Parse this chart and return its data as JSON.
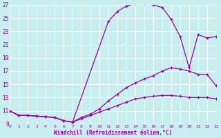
{
  "xlabel": "Windchill (Refroidissement éolien,°C)",
  "bg_color": "#c8eef0",
  "grid_color": "#ffffff",
  "line_color": "#990099",
  "xlim": [
    0,
    23
  ],
  "ylim": [
    9,
    27
  ],
  "xticks": [
    0,
    1,
    2,
    3,
    4,
    5,
    6,
    7,
    8,
    9,
    10,
    11,
    12,
    13,
    14,
    15,
    16,
    17,
    18,
    19,
    20,
    21,
    22,
    23
  ],
  "yticks": [
    9,
    11,
    13,
    15,
    17,
    19,
    21,
    23,
    25,
    27
  ],
  "line1_x": [
    0,
    1,
    2,
    3,
    4,
    5,
    6,
    7,
    11,
    12,
    13,
    14,
    15,
    16,
    17,
    18,
    19,
    20,
    21,
    22,
    23
  ],
  "line1_y": [
    11,
    10.3,
    10.3,
    10.2,
    10.1,
    10.0,
    9.5,
    9.3,
    24.5,
    26.0,
    26.8,
    27.2,
    27.2,
    27.0,
    26.6,
    24.8,
    22.2,
    17.5,
    22.5,
    22.0,
    22.2
  ],
  "line2_x": [
    0,
    1,
    2,
    3,
    4,
    5,
    6,
    7,
    8,
    9,
    10,
    11,
    12,
    13,
    14,
    15,
    16,
    17,
    18,
    19,
    20,
    21,
    22,
    23
  ],
  "line2_y": [
    11,
    10.3,
    10.3,
    10.2,
    10.1,
    10.0,
    9.5,
    9.3,
    10.0,
    10.5,
    11.3,
    12.5,
    13.5,
    14.5,
    15.2,
    15.8,
    16.3,
    17.0,
    17.5,
    17.3,
    17.0,
    16.5,
    16.5,
    14.8
  ],
  "line3_x": [
    0,
    1,
    2,
    3,
    4,
    5,
    6,
    7,
    8,
    9,
    10,
    11,
    12,
    13,
    14,
    15,
    16,
    17,
    18,
    19,
    20,
    21,
    22,
    23
  ],
  "line3_y": [
    11,
    10.3,
    10.3,
    10.2,
    10.1,
    10.0,
    9.5,
    9.3,
    9.8,
    10.3,
    10.8,
    11.3,
    11.8,
    12.3,
    12.8,
    13.0,
    13.2,
    13.3,
    13.3,
    13.2,
    13.0,
    13.0,
    13.0,
    12.8
  ],
  "marker": "+"
}
